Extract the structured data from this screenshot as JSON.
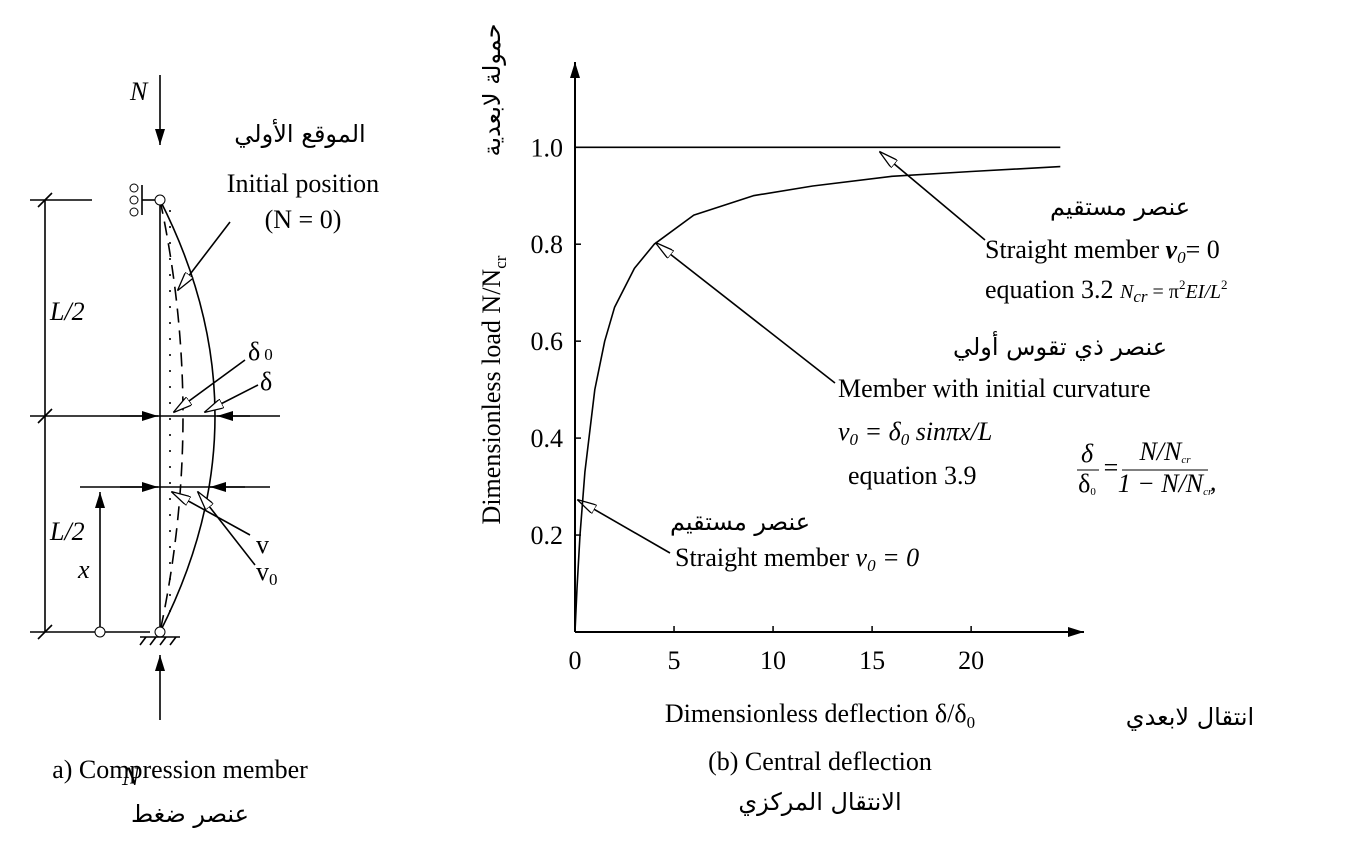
{
  "panel_a": {
    "load_top": "N",
    "load_bottom": "N",
    "initial_position_ar": "الموقع الأولي",
    "initial_position": "Initial position",
    "initial_condition": "(N = 0)",
    "half_length_top": "L/2",
    "half_length_bottom": "L/2",
    "delta0": [
      "δ",
      "0"
    ],
    "delta": "δ",
    "x": "x",
    "v": "v",
    "v0": [
      "v",
      "0"
    ],
    "caption": "a) Compression member",
    "caption_ar": "عنصر ضغط"
  },
  "chart_data": {
    "type": "line",
    "y_label": [
      "Dimensionless load N/N",
      "cr"
    ],
    "y_label_ar": "حمولة لابعدية",
    "x_label": [
      "Dimensionless deflection δ/δ",
      "0"
    ],
    "x_label_ar": "انتقال لابعدي",
    "caption": "(b) Central deflection",
    "caption_ar": "الانتقال المركزي",
    "xlim": [
      0,
      25.8
    ],
    "ylim": [
      0,
      1.18
    ],
    "xticks": [
      0,
      5,
      10,
      15,
      20
    ],
    "yticks": [
      0.2,
      0.4,
      0.6,
      0.8,
      {
        "value": 1,
        "label": "1.0"
      }
    ],
    "series": [
      {
        "color": "#000000",
        "x": [
          0,
          24.5
        ],
        "values": [
          1,
          1
        ]
      },
      {
        "color": "#000000",
        "x": [
          0,
          0.1,
          0.25,
          0.5,
          1,
          1.5,
          2,
          3,
          4,
          6,
          9,
          12,
          16,
          20,
          24.5
        ],
        "values": [
          0,
          0.09,
          0.2,
          0.33,
          0.5,
          0.6,
          0.67,
          0.75,
          0.8,
          0.86,
          0.9,
          0.92,
          0.94,
          0.95,
          0.96
        ]
      }
    ],
    "annotations": {
      "straight_upper": {
        "ar": "عنصر مستقيم",
        "line1": [
          "Straight member ",
          "v",
          "0",
          "= 0"
        ],
        "line2": [
          "equation 3.2 ",
          "N",
          "cr",
          " = π",
          "2",
          "EI/L",
          "2"
        ]
      },
      "curved": {
        "ar": "عنصر ذي تقوس أولي",
        "line1": "Member with initial curvature",
        "line2": [
          "v",
          "0",
          " = ",
          "δ",
          "0",
          " sinπx/L"
        ],
        "line3": "equation 3.9"
      },
      "formula": {
        "lhs_num": "δ",
        "lhs_den": [
          "δ",
          "0"
        ],
        "eq": "=",
        "rhs_num": [
          "N/N",
          "cr"
        ],
        "rhs_den": [
          "1 − N/N",
          "cr"
        ],
        "tail": ","
      },
      "straight_lower": {
        "ar": "عنصر مستقيم",
        "line1": [
          "Straight member ",
          "v",
          "0",
          " = 0"
        ]
      }
    }
  }
}
